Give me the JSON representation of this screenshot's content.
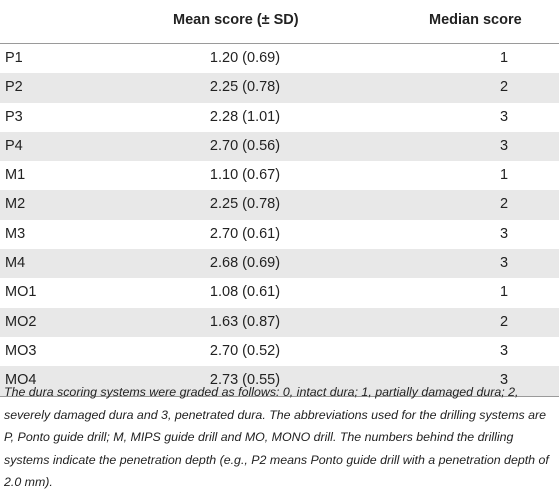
{
  "table": {
    "headers": {
      "label": "",
      "mean": "Mean score (± SD)",
      "median": "Median score"
    },
    "rows": [
      {
        "label": "P1",
        "mean": "1.20 (0.69)",
        "median": "1"
      },
      {
        "label": "P2",
        "mean": "2.25 (0.78)",
        "median": "2"
      },
      {
        "label": "P3",
        "mean": "2.28 (1.01)",
        "median": "3"
      },
      {
        "label": "P4",
        "mean": "2.70 (0.56)",
        "median": "3"
      },
      {
        "label": "M1",
        "mean": "1.10 (0.67)",
        "median": "1"
      },
      {
        "label": "M2",
        "mean": "2.25 (0.78)",
        "median": "2"
      },
      {
        "label": "M3",
        "mean": "2.70 (0.61)",
        "median": "3"
      },
      {
        "label": "M4",
        "mean": "2.68 (0.69)",
        "median": "3"
      },
      {
        "label": "MO1",
        "mean": "1.08 (0.61)",
        "median": "1"
      },
      {
        "label": "MO2",
        "mean": "1.63 (0.87)",
        "median": "2"
      },
      {
        "label": "MO3",
        "mean": "2.70 (0.52)",
        "median": "3"
      },
      {
        "label": "MO4",
        "mean": "2.73 (0.55)",
        "median": "3"
      }
    ],
    "shaded_row_color": "#e8e8e8"
  },
  "footnote": "The dura scoring systems were graded as follows: 0, intact dura; 1, partially damaged dura; 2, severely damaged dura and 3, penetrated dura. The abbreviations used for the drilling systems are P, Ponto guide drill; M, MIPS guide drill and MO, MONO drill. The numbers behind the drilling systems indicate the penetration depth (e.g., P2 means Ponto guide drill with a penetration depth of 2.0 mm)."
}
